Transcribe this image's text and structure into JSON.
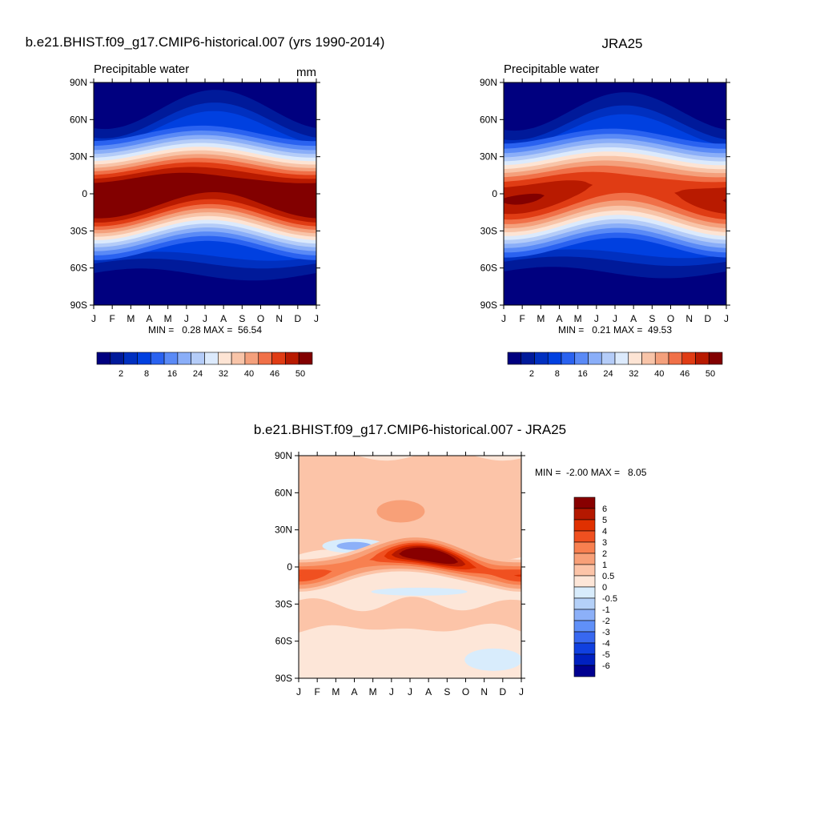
{
  "chart_data": [
    {
      "type": "contour",
      "title": "b.e21.BHIST.f09_g17.CMIP6-historical.007 (yrs 1990-2014)",
      "subtitle": "Precipitable water",
      "units": "mm",
      "stats": "MIN =   0.28 MAX =  56.54",
      "categories": [
        "J",
        "F",
        "M",
        "A",
        "M",
        "J",
        "J",
        "A",
        "S",
        "O",
        "N",
        "D",
        "J"
      ],
      "ylim": [
        -90,
        90
      ],
      "yticks": [
        {
          "value": 90,
          "label": "90N"
        },
        {
          "value": 60,
          "label": "60N"
        },
        {
          "value": 30,
          "label": "30N"
        },
        0,
        {
          "value": -30,
          "label": "30S"
        },
        {
          "value": -60,
          "label": "60S"
        },
        {
          "value": -90,
          "label": "90S"
        }
      ],
      "colorbar": {
        "labels": [
          2,
          8,
          16,
          24,
          32,
          40,
          46,
          50
        ],
        "colors": [
          "#00007f",
          "#001a9a",
          "#0030c0",
          "#0040e0",
          "#2a62f0",
          "#5a8af6",
          "#8aaef8",
          "#b4ccf8",
          "#dceafc",
          "#fde4d4",
          "#f8c4a8",
          "#f4a07c",
          "#f07048",
          "#e03c14",
          "#b81a00",
          "#820000"
        ]
      }
    },
    {
      "type": "contour",
      "title": "JRA25",
      "subtitle": "Precipitable water",
      "stats": "MIN =   0.21 MAX =  49.53",
      "categories": [
        "J",
        "F",
        "M",
        "A",
        "M",
        "J",
        "J",
        "A",
        "S",
        "O",
        "N",
        "D",
        "J"
      ],
      "ylim": [
        -90,
        90
      ],
      "yticks": [
        {
          "value": 90,
          "label": "90N"
        },
        {
          "value": 60,
          "label": "60N"
        },
        {
          "value": 30,
          "label": "30N"
        },
        0,
        {
          "value": -30,
          "label": "30S"
        },
        {
          "value": -60,
          "label": "60S"
        },
        {
          "value": -90,
          "label": "90S"
        }
      ],
      "colorbar": {
        "labels": [
          2,
          8,
          16,
          24,
          32,
          40,
          46,
          50
        ],
        "colors": [
          "#00007f",
          "#001a9a",
          "#0030c0",
          "#0040e0",
          "#2a62f0",
          "#5a8af6",
          "#8aaef8",
          "#b4ccf8",
          "#dceafc",
          "#fde4d4",
          "#f8c4a8",
          "#f4a07c",
          "#f07048",
          "#e03c14",
          "#b81a00",
          "#820000"
        ]
      }
    },
    {
      "type": "contour-diff",
      "title": "b.e21.BHIST.f09_g17.CMIP6-historical.007 - JRA25",
      "stats": "MIN =  -2.00 MAX =   8.05",
      "categories": [
        "J",
        "F",
        "M",
        "A",
        "M",
        "J",
        "J",
        "A",
        "S",
        "O",
        "N",
        "D",
        "J"
      ],
      "ylim": [
        -90,
        90
      ],
      "yticks": [
        {
          "value": 90,
          "label": "90N"
        },
        {
          "value": 60,
          "label": "60N"
        },
        {
          "value": 30,
          "label": "30N"
        },
        0,
        {
          "value": -30,
          "label": "30S"
        },
        {
          "value": -60,
          "label": "60S"
        },
        {
          "value": -90,
          "label": "90S"
        }
      ],
      "colorbar": {
        "labels": [
          6,
          5,
          4,
          3,
          2,
          1,
          0.5,
          0,
          -0.5,
          -1,
          -2,
          -3,
          -4,
          -5,
          -6
        ],
        "colors": [
          "#880000",
          "#b41800",
          "#e03000",
          "#f05020",
          "#f88050",
          "#f8a078",
          "#fcc4a8",
          "#fde6d8",
          "#d8ecfc",
          "#b4d0f8",
          "#8cb0f8",
          "#6090f8",
          "#3868f0",
          "#1040e0",
          "#0020c0",
          "#000090"
        ]
      }
    }
  ]
}
